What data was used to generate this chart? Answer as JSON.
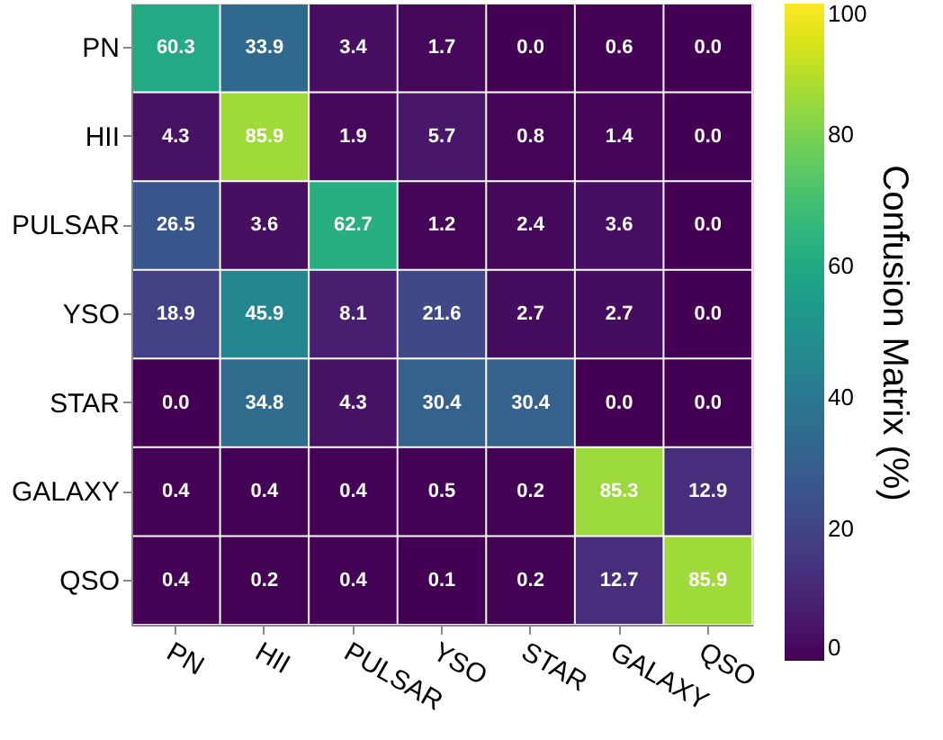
{
  "chart_data": {
    "type": "heatmap",
    "categories": [
      "PN",
      "HII",
      "PULSAR",
      "YSO",
      "STAR",
      "GALAXY",
      "QSO"
    ],
    "y_categories": [
      "PN",
      "HII",
      "PULSAR",
      "YSO",
      "STAR",
      "GALAXY",
      "QSO"
    ],
    "cells": [
      [
        60.3,
        33.9,
        3.4,
        1.7,
        0.0,
        0.6,
        0.0
      ],
      [
        4.3,
        85.9,
        1.9,
        5.7,
        0.8,
        1.4,
        0.0
      ],
      [
        26.5,
        3.6,
        62.7,
        1.2,
        2.4,
        3.6,
        0.0
      ],
      [
        18.9,
        45.9,
        8.1,
        21.6,
        2.7,
        2.7,
        0.0
      ],
      [
        0.0,
        34.8,
        4.3,
        30.4,
        30.4,
        0.0,
        0.0
      ],
      [
        0.4,
        0.4,
        0.4,
        0.5,
        0.2,
        85.3,
        12.9
      ],
      [
        0.4,
        0.2,
        0.4,
        0.1,
        0.2,
        12.7,
        85.9
      ]
    ],
    "cell_labels": [
      [
        "60.3",
        "33.9",
        "3.4",
        "1.7",
        "0.0",
        "0.6",
        "0.0"
      ],
      [
        "4.3",
        "85.9",
        "1.9",
        "5.7",
        "0.8",
        "1.4",
        "0.0"
      ],
      [
        "26.5",
        "3.6",
        "62.7",
        "1.2",
        "2.4",
        "3.6",
        "0.0"
      ],
      [
        "18.9",
        "45.9",
        "8.1",
        "21.6",
        "2.7",
        "2.7",
        "0.0"
      ],
      [
        "0.0",
        "34.8",
        "4.3",
        "30.4",
        "30.4",
        "0.0",
        "0.0"
      ],
      [
        "0.4",
        "0.4",
        "0.4",
        "0.5",
        "0.2",
        "85.3",
        "12.9"
      ],
      [
        "0.4",
        "0.2",
        "0.4",
        "0.1",
        "0.2",
        "12.7",
        "85.9"
      ]
    ],
    "clabel": "Confusion Matrix (%)",
    "clim": [
      0,
      100
    ],
    "cticks": [
      0,
      20,
      40,
      60,
      80,
      100
    ],
    "grid": false
  }
}
